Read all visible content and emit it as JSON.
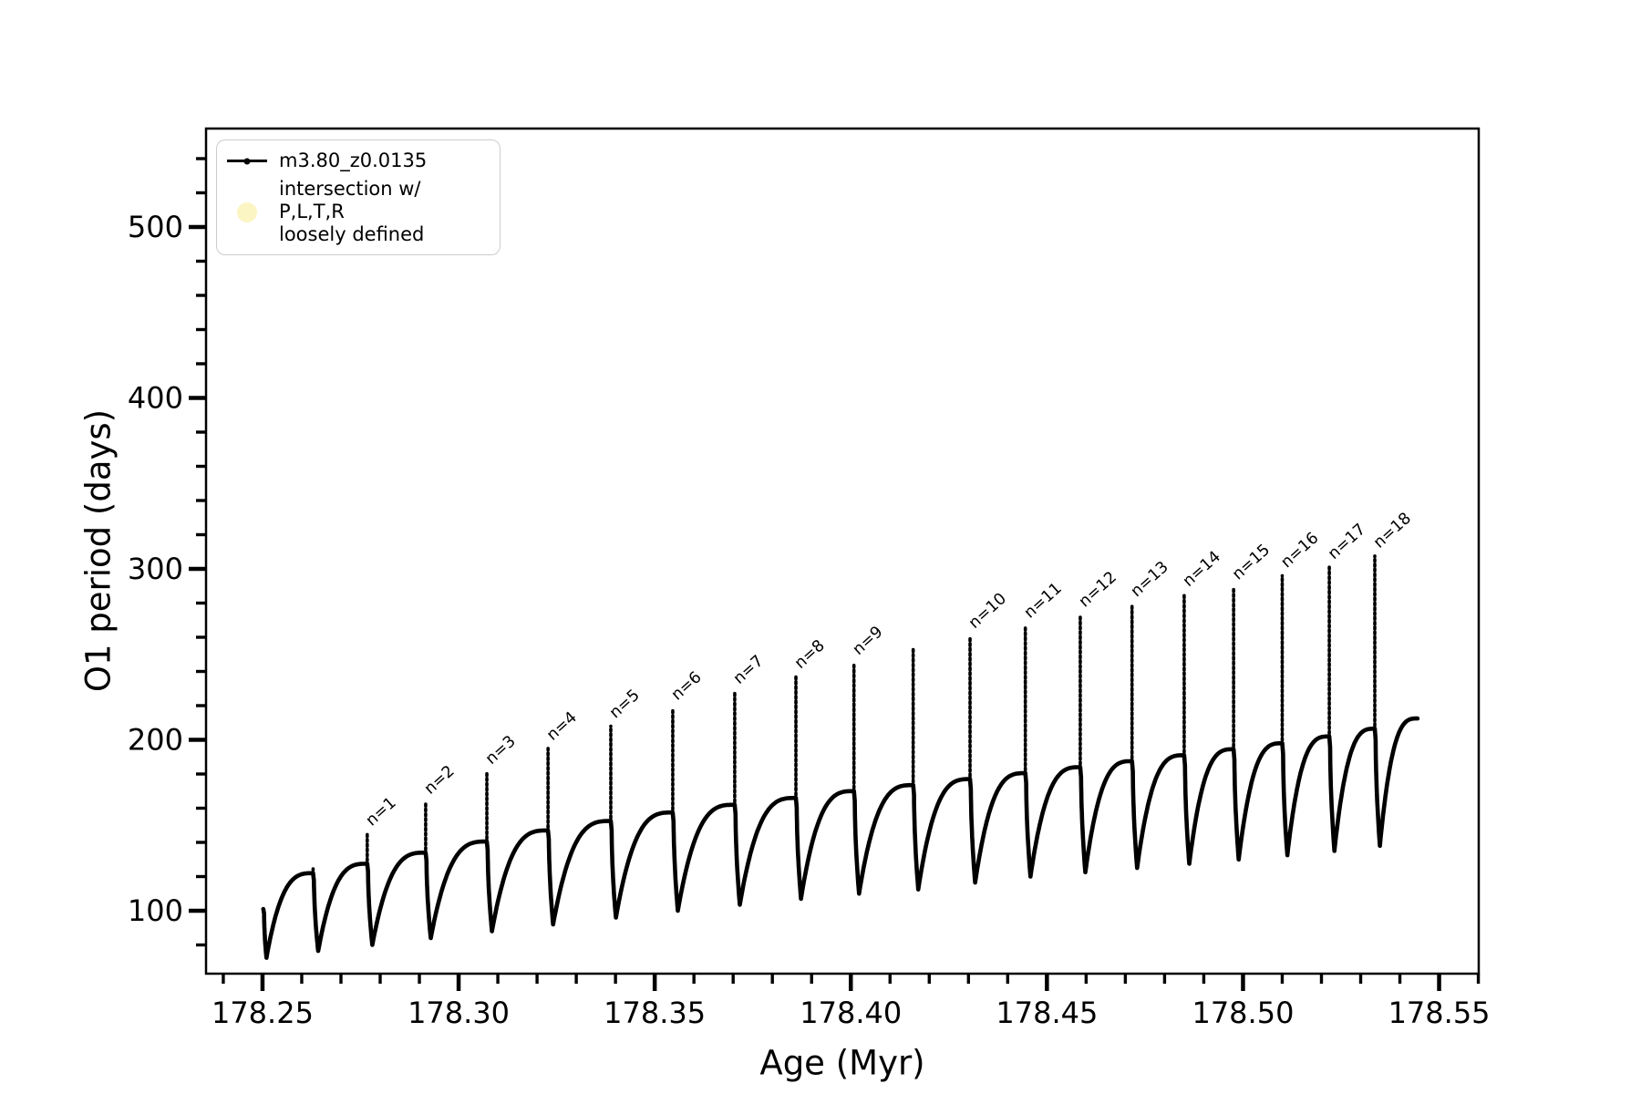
{
  "chart_data": {
    "type": "line",
    "title": "",
    "xlabel": "Age (Myr)",
    "ylabel": "O1 period (days)",
    "series_name": "m3.80_z0.0135",
    "xlim": [
      178.2356,
      178.5601
    ],
    "ylim": [
      63.2,
      557.6
    ],
    "x_tick_values": [
      178.25,
      178.3,
      178.35,
      178.4,
      178.45,
      178.5,
      178.55
    ],
    "x_tick_labels": [
      "178.25",
      "178.30",
      "178.35",
      "178.40",
      "178.45",
      "178.50",
      "178.55"
    ],
    "y_tick_values": [
      100,
      200,
      300,
      400,
      500
    ],
    "y_tick_labels": [
      "100",
      "200",
      "300",
      "400",
      "500"
    ],
    "x_minor_step": 0.01,
    "y_minor_step": 20,
    "grid": "off",
    "legend_position": "upper-left",
    "line_color": "#000000",
    "annotation_rotation_deg": -42,
    "start": {
      "age": 178.2502,
      "value": 101,
      "dip_min": 72.5,
      "dip_width": 0.0008
    },
    "pulses": [
      {
        "label": "",
        "age": 178.2629,
        "peak": 124.5,
        "plateau_before": 122.0,
        "dip_min": 76.5
      },
      {
        "label": "n=1",
        "age": 178.2767,
        "peak": 145.0,
        "plateau_before": 127.5,
        "dip_min": 80.0
      },
      {
        "label": "n=2",
        "age": 178.2916,
        "peak": 163.5,
        "plateau_before": 134.0,
        "dip_min": 84.0
      },
      {
        "label": "n=3",
        "age": 178.3072,
        "peak": 181.0,
        "plateau_before": 140.5,
        "dip_min": 88.0
      },
      {
        "label": "n=4",
        "age": 178.3228,
        "peak": 195.0,
        "plateau_before": 147.0,
        "dip_min": 92.0
      },
      {
        "label": "n=5",
        "age": 178.3388,
        "peak": 208.0,
        "plateau_before": 152.5,
        "dip_min": 96.0
      },
      {
        "label": "n=6",
        "age": 178.3546,
        "peak": 218.5,
        "plateau_before": 157.5,
        "dip_min": 100.0
      },
      {
        "label": "n=7",
        "age": 178.3704,
        "peak": 228.0,
        "plateau_before": 162.0,
        "dip_min": 103.5
      },
      {
        "label": "n=8",
        "age": 178.386,
        "peak": 237.0,
        "plateau_before": 166.0,
        "dip_min": 107.0
      },
      {
        "label": "n=9",
        "age": 178.4008,
        "peak": 245.0,
        "plateau_before": 170.0,
        "dip_min": 110.0
      },
      {
        "label": "",
        "age": 178.4159,
        "peak": 253.0,
        "plateau_before": 173.5,
        "dip_min": 112.5
      },
      {
        "label": "n=10",
        "age": 178.4304,
        "peak": 260.5,
        "plateau_before": 177.0,
        "dip_min": 116.5
      },
      {
        "label": "n=11",
        "age": 178.4445,
        "peak": 266.5,
        "plateau_before": 180.5,
        "dip_min": 120.0
      },
      {
        "label": "n=12",
        "age": 178.4585,
        "peak": 273.0,
        "plateau_before": 184.0,
        "dip_min": 122.5
      },
      {
        "label": "n=13",
        "age": 178.4717,
        "peak": 279.0,
        "plateau_before": 187.5,
        "dip_min": 125.0
      },
      {
        "label": "n=14",
        "age": 178.485,
        "peak": 285.0,
        "plateau_before": 191.0,
        "dip_min": 127.5
      },
      {
        "label": "n=15",
        "age": 178.4976,
        "peak": 289.0,
        "plateau_before": 194.5,
        "dip_min": 130.0
      },
      {
        "label": "n=16",
        "age": 178.51,
        "peak": 296.0,
        "plateau_before": 198.0,
        "dip_min": 132.5
      },
      {
        "label": "n=17",
        "age": 178.522,
        "peak": 301.0,
        "plateau_before": 202.0,
        "dip_min": 135.0
      },
      {
        "label": "n=18",
        "age": 178.5336,
        "peak": 307.5,
        "plateau_before": 206.5,
        "dip_min": 138.0
      }
    ],
    "end": {
      "age": 178.5445,
      "value": 212.5
    },
    "legend": {
      "entries": [
        {
          "label": "m3.80_z0.0135",
          "marker": "line-dot",
          "marker_color": "#000000"
        },
        {
          "label": "intersection w/ P,L,T,R",
          "label2": "loosely defined",
          "marker": "circle",
          "marker_color": "#faf5c3"
        }
      ]
    }
  }
}
